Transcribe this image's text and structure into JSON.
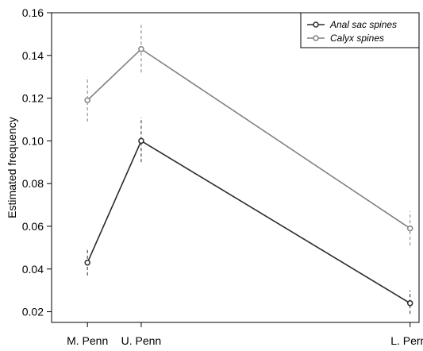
{
  "chart_data": {
    "type": "line",
    "title": "",
    "xlabel": "",
    "ylabel": "Estimated frequency",
    "categories": [
      "M. Penn",
      "U. Penn",
      "L. Perm"
    ],
    "x": [
      0.4,
      1.0,
      4.0
    ],
    "ylim": [
      0.015,
      0.16
    ],
    "yticks": [
      0.02,
      0.04,
      0.06,
      0.08,
      0.1,
      0.12,
      0.14,
      0.16
    ],
    "ytick_labels": [
      "0.02",
      "0.04",
      "0.06",
      "0.08",
      "0.10",
      "0.12",
      "0.14",
      "0.16"
    ],
    "grid": false,
    "legend_position": "top-right",
    "series": [
      {
        "name": "Anal sac spines",
        "color": "#2b2b2b",
        "values": [
          0.043,
          0.1,
          0.024
        ],
        "err_low": [
          0.037,
          0.09,
          0.019
        ],
        "err_high": [
          0.049,
          0.111,
          0.03
        ]
      },
      {
        "name": "Calyx spines",
        "color": "#808080",
        "values": [
          0.119,
          0.143,
          0.059
        ],
        "err_low": [
          0.109,
          0.132,
          0.051
        ],
        "err_high": [
          0.13,
          0.155,
          0.067
        ]
      }
    ]
  }
}
